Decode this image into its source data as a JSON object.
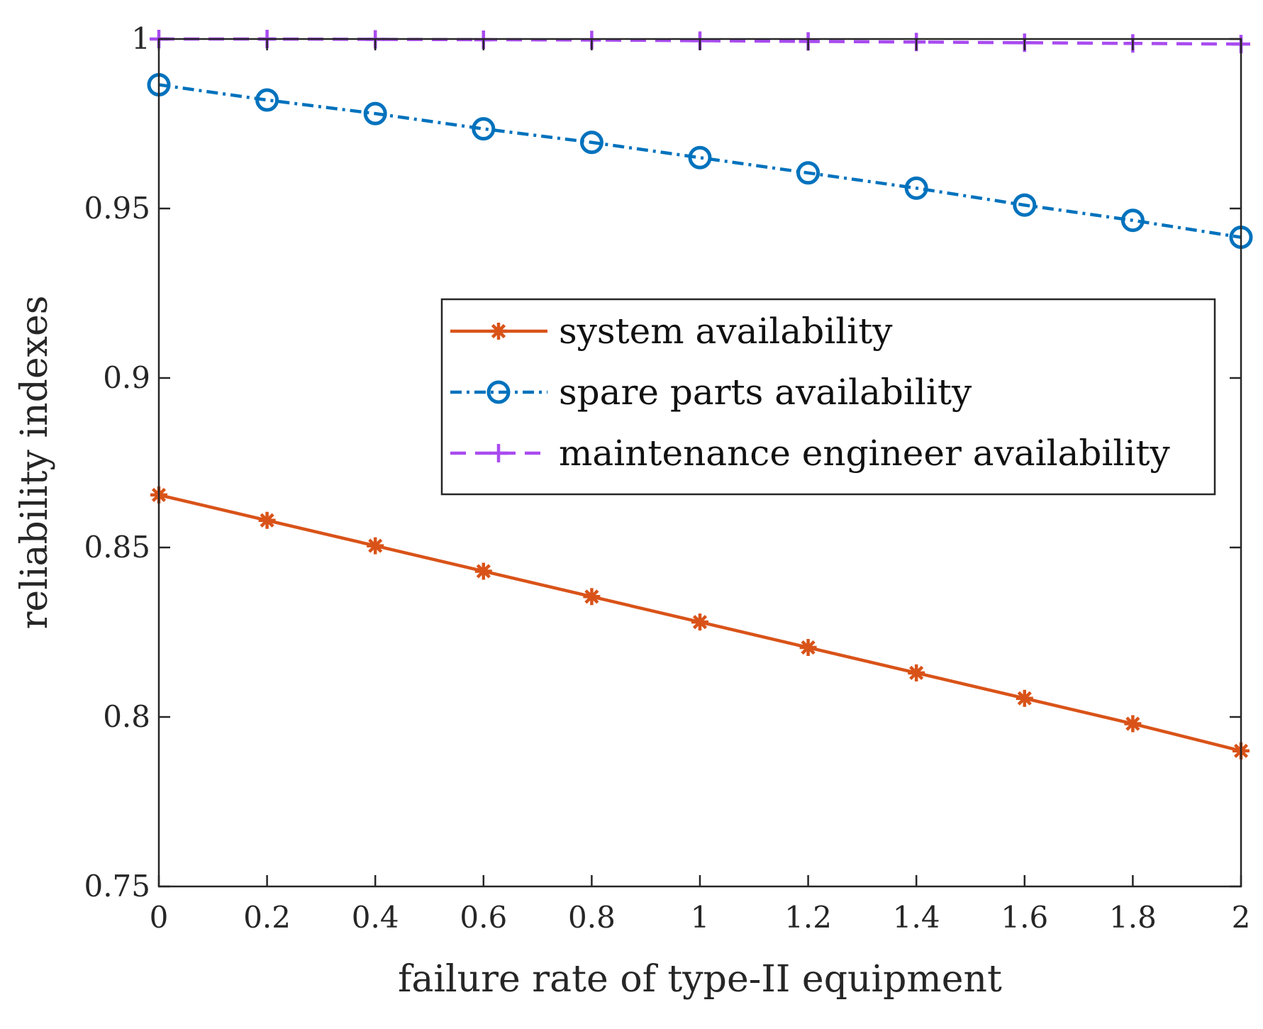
{
  "chart_data": {
    "type": "line",
    "title": "",
    "xlabel": "failure rate of type-II equipment",
    "ylabel": "reliability indexes",
    "xlim": [
      0,
      2
    ],
    "ylim": [
      0.75,
      1
    ],
    "x": [
      0,
      0.2,
      0.4,
      0.6,
      0.8,
      1,
      1.2,
      1.4,
      1.6,
      1.8,
      2
    ],
    "xticks": [
      0,
      0.2,
      0.4,
      0.6,
      0.8,
      1,
      1.2,
      1.4,
      1.6,
      1.8,
      2
    ],
    "xtick_labels": [
      "0",
      "0.2",
      "0.4",
      "0.6",
      "0.8",
      "1",
      "1.2",
      "1.4",
      "1.6",
      "1.8",
      "2"
    ],
    "yticks": [
      0.75,
      0.8,
      0.85,
      0.9,
      0.95,
      1
    ],
    "ytick_labels": [
      "0.75",
      "0.8",
      "0.85",
      "0.9",
      "0.95",
      "1"
    ],
    "grid": false,
    "legend_position": "center-right",
    "series": [
      {
        "name": "system availability",
        "color": "#D95319",
        "line_style": "solid",
        "marker": "asterisk",
        "values": [
          0.8655,
          0.858,
          0.8505,
          0.843,
          0.8355,
          0.828,
          0.8205,
          0.813,
          0.8055,
          0.798,
          0.79
        ]
      },
      {
        "name": "spare parts availability",
        "color": "#0072BD",
        "line_style": "dashdot",
        "marker": "circle",
        "values": [
          0.9865,
          0.982,
          0.978,
          0.9735,
          0.9695,
          0.965,
          0.9605,
          0.956,
          0.951,
          0.9465,
          0.9415
        ]
      },
      {
        "name": "maintenance engineer availability",
        "color": "#A94BF0",
        "line_style": "dashed",
        "marker": "plus",
        "values": [
          1.0,
          1.0,
          0.9999,
          0.9998,
          0.9997,
          0.9995,
          0.9993,
          0.9991,
          0.9989,
          0.9987,
          0.9985
        ]
      }
    ]
  }
}
